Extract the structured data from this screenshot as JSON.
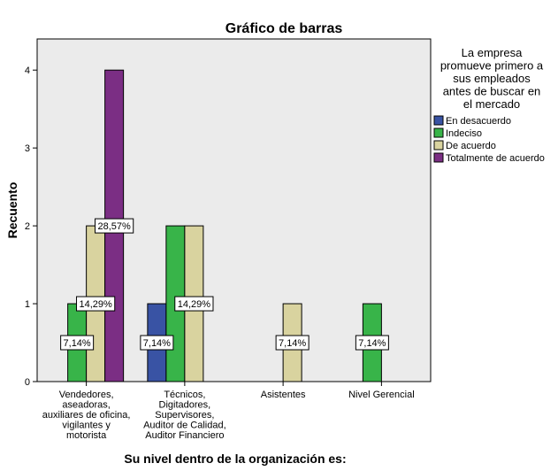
{
  "chart_data": {
    "type": "bar",
    "title": "Gráfico de barras",
    "xlabel": "Su nivel dentro de la organización es:",
    "ylabel": "Recuento",
    "ylim": [
      0,
      4.4
    ],
    "yticks": [
      0,
      1,
      2,
      3,
      4
    ],
    "grid": false,
    "legend_position": "right",
    "legend_title": [
      "La empresa",
      "promueve primero a",
      "sus empleados",
      "antes de buscar en",
      "el mercado"
    ],
    "categories": [
      [
        "Vendedores,",
        "aseadoras,",
        "auxiliares de oficina,",
        "vigilantes y",
        "motorista"
      ],
      [
        "Técnicos,",
        "Digitadores,",
        "Supervisores,",
        "Auditor de Calidad,",
        "Auditor Financiero"
      ],
      [
        "Asistentes"
      ],
      [
        "Nivel Gerencial"
      ]
    ],
    "series": [
      {
        "name": "En desacuerdo",
        "color": "#3953a4",
        "values": [
          0,
          1,
          0,
          0
        ],
        "labels": [
          "",
          "7,14%",
          "",
          ""
        ]
      },
      {
        "name": "Indeciso",
        "color": "#38b449",
        "values": [
          1,
          2,
          0,
          1
        ],
        "labels": [
          "7,14%",
          "",
          "",
          "7,14%"
        ]
      },
      {
        "name": "De acuerdo",
        "color": "#d9d39f",
        "values": [
          2,
          2,
          1,
          0
        ],
        "labels": [
          "14,29%",
          "14,29%",
          "7,14%",
          ""
        ]
      },
      {
        "name": "Totalmente  de acuerdo",
        "color": "#7b2e84",
        "values": [
          4,
          0,
          0,
          0
        ],
        "labels": [
          "28,57%",
          "",
          "",
          ""
        ]
      }
    ],
    "plot_background": "#ebebeb"
  }
}
